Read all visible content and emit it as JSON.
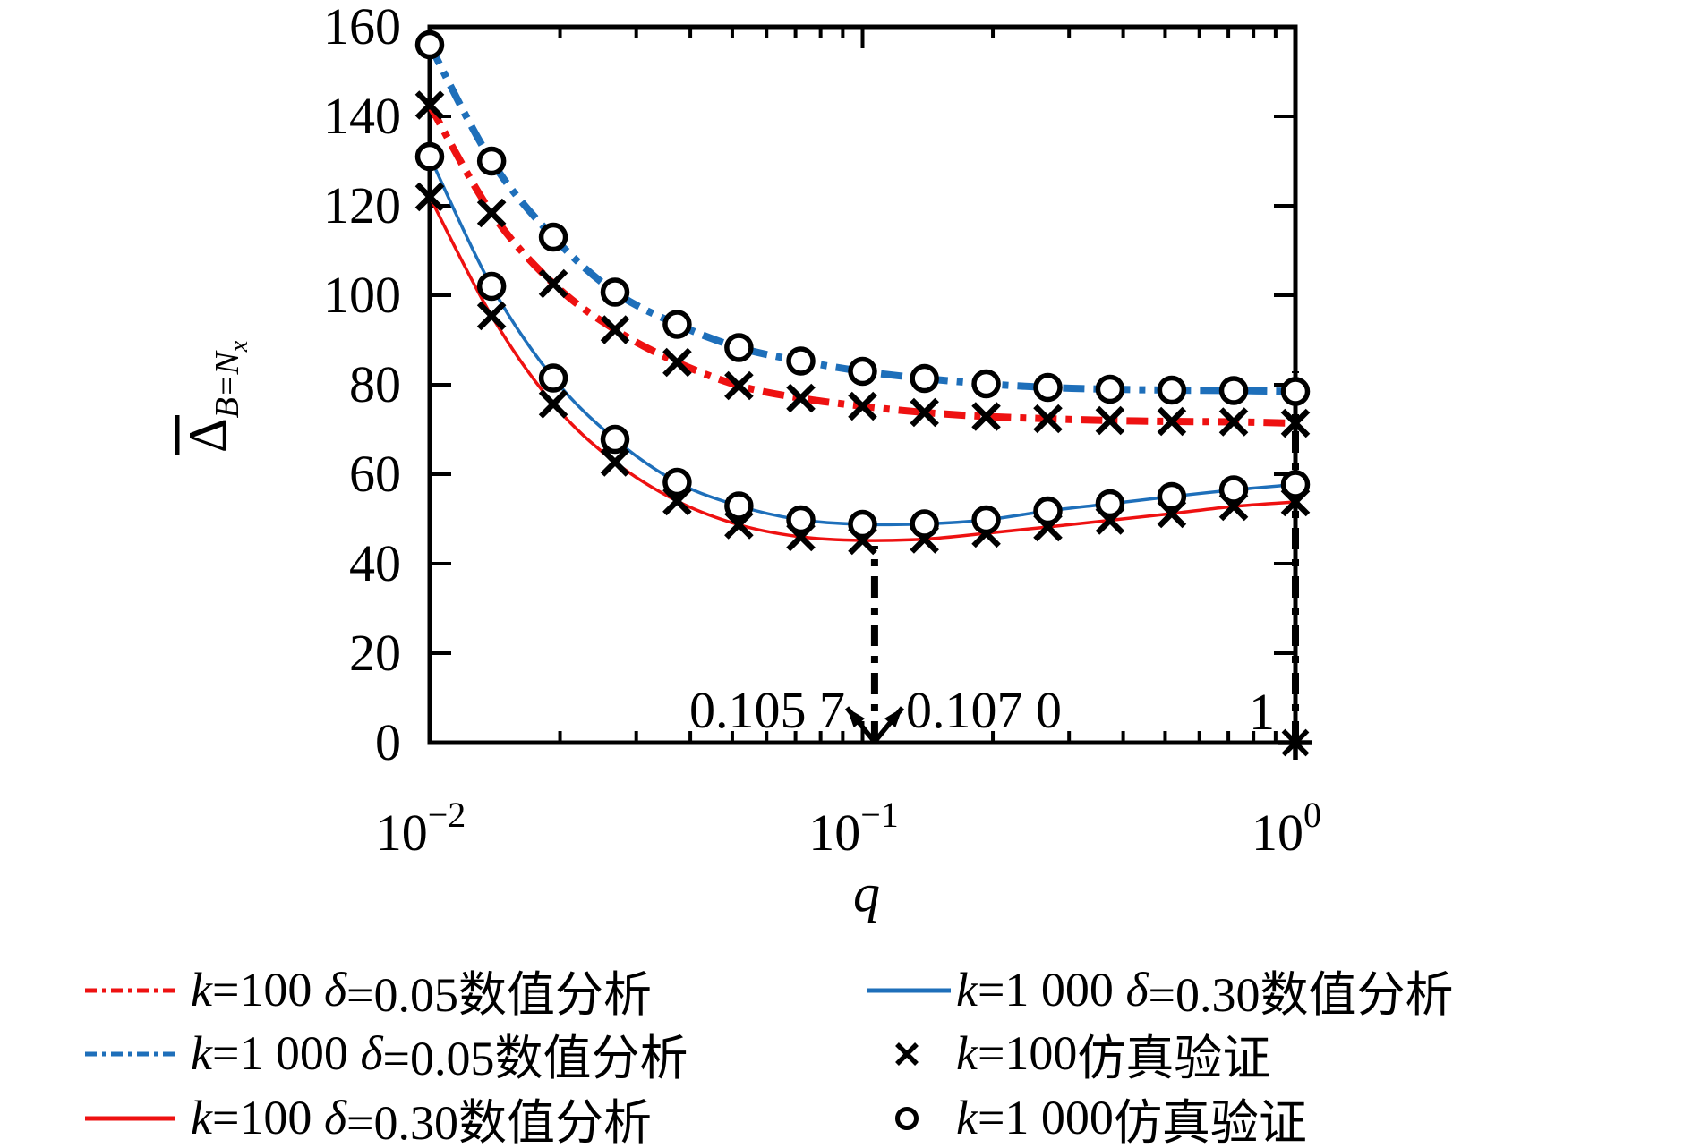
{
  "figure": {
    "background": "#ffffff",
    "xlabel": "q",
    "ylabel": {
      "main": "Δ",
      "bar": "̄",
      "sub": "B=N",
      "subsub": "x",
      "plain": "Δ̄_B=N_x"
    }
  },
  "colors": {
    "red": "#ee1111",
    "blue": "#1e6fba",
    "black": "#000000"
  },
  "chart_data": {
    "type": "line",
    "xscale": "log",
    "xlim": [
      0.01,
      1
    ],
    "ylim": [
      0,
      160
    ],
    "grid": false,
    "xlabel": "q",
    "ylabel": "Δ̄_B=N_x",
    "xticks": [
      {
        "q": 0.01,
        "base": "10",
        "exp": "−2"
      },
      {
        "q": 0.1,
        "base": "10",
        "exp": "−1"
      },
      {
        "q": 1,
        "base": "10",
        "exp": "0"
      }
    ],
    "yticks": [
      0,
      20,
      40,
      60,
      80,
      100,
      120,
      140,
      160
    ],
    "x": [
      0.01,
      0.0139,
      0.0193,
      0.0268,
      0.0373,
      0.0518,
      0.072,
      0.1,
      0.139,
      0.193,
      0.268,
      0.373,
      0.518,
      0.72,
      1.0
    ],
    "series": [
      {
        "name": "k=100 δ=0.05数值分析",
        "color": "#ee1111",
        "style": "dashdot",
        "width": 8,
        "values": [
          142.5,
          118.4,
          102.6,
          92.3,
          85.0,
          79.8,
          77.0,
          75.2,
          73.8,
          72.9,
          72.4,
          72.0,
          71.8,
          71.7,
          71.4
        ]
      },
      {
        "name": "k=1 000 δ=0.05数值分析",
        "color": "#1e6fba",
        "style": "dashdot",
        "width": 8,
        "values": [
          156.0,
          130.0,
          113.0,
          100.7,
          93.5,
          88.3,
          85.3,
          83.0,
          81.4,
          80.2,
          79.4,
          79.0,
          78.8,
          78.7,
          78.5
        ]
      },
      {
        "name": "k=100 δ=0.30数值分析",
        "color": "#ee1111",
        "style": "solid",
        "width": 3.5,
        "values": [
          122.0,
          95.4,
          75.7,
          62.7,
          54.0,
          48.7,
          46.0,
          45.2,
          45.5,
          46.8,
          48.2,
          49.7,
          51.2,
          52.8,
          53.8
        ]
      },
      {
        "name": "k=1 000 δ=0.30数值分析",
        "color": "#1e6fba",
        "style": "solid",
        "width": 3.5,
        "values": [
          131.0,
          102.0,
          81.5,
          67.8,
          58.2,
          52.9,
          49.8,
          48.8,
          48.9,
          49.8,
          51.8,
          53.4,
          55.0,
          56.5,
          57.7
        ]
      }
    ],
    "marker_series": [
      {
        "name": "k=100仿真验证",
        "marker": "cross",
        "on_series": [
          0,
          2
        ]
      },
      {
        "name": "k=1 000仿真验证",
        "marker": "circle",
        "on_series": [
          1,
          3
        ]
      }
    ],
    "annotations": {
      "vline_min": {
        "q": 0.1066,
        "v_from": 0,
        "v_to": 44
      },
      "vline_one": {
        "q": 1.0,
        "v_from": 0,
        "v_to": 83
      },
      "left_label": "0.105 7",
      "right_label": "0.107 0",
      "one_label": "1",
      "star": {
        "q": 1.0,
        "v": 0
      }
    }
  },
  "legend": {
    "items": [
      {
        "k": "k",
        "kv": "=100 ",
        "d": "δ",
        "dv": "=0.05数值分析",
        "sample": "dashdot",
        "color": "#ee1111"
      },
      {
        "k": "k",
        "kv": "=1 000 ",
        "d": "δ",
        "dv": "=0.05数值分析",
        "sample": "dashdot",
        "color": "#1e6fba"
      },
      {
        "k": "k",
        "kv": "=100 ",
        "d": "δ",
        "dv": "=0.30数值分析",
        "sample": "solid",
        "color": "#ee1111"
      },
      {
        "k": "k",
        "kv": "=1 000 ",
        "d": "δ",
        "dv": "=0.30数值分析",
        "sample": "solid",
        "color": "#1e6fba"
      },
      {
        "k": "k",
        "kv": "=100",
        "d": "",
        "dv": "仿真验证",
        "sample": "cross",
        "color": "#000000"
      },
      {
        "k": "k",
        "kv": "=1 000",
        "d": "",
        "dv": "仿真验证",
        "sample": "circle",
        "color": "#000000"
      }
    ]
  }
}
